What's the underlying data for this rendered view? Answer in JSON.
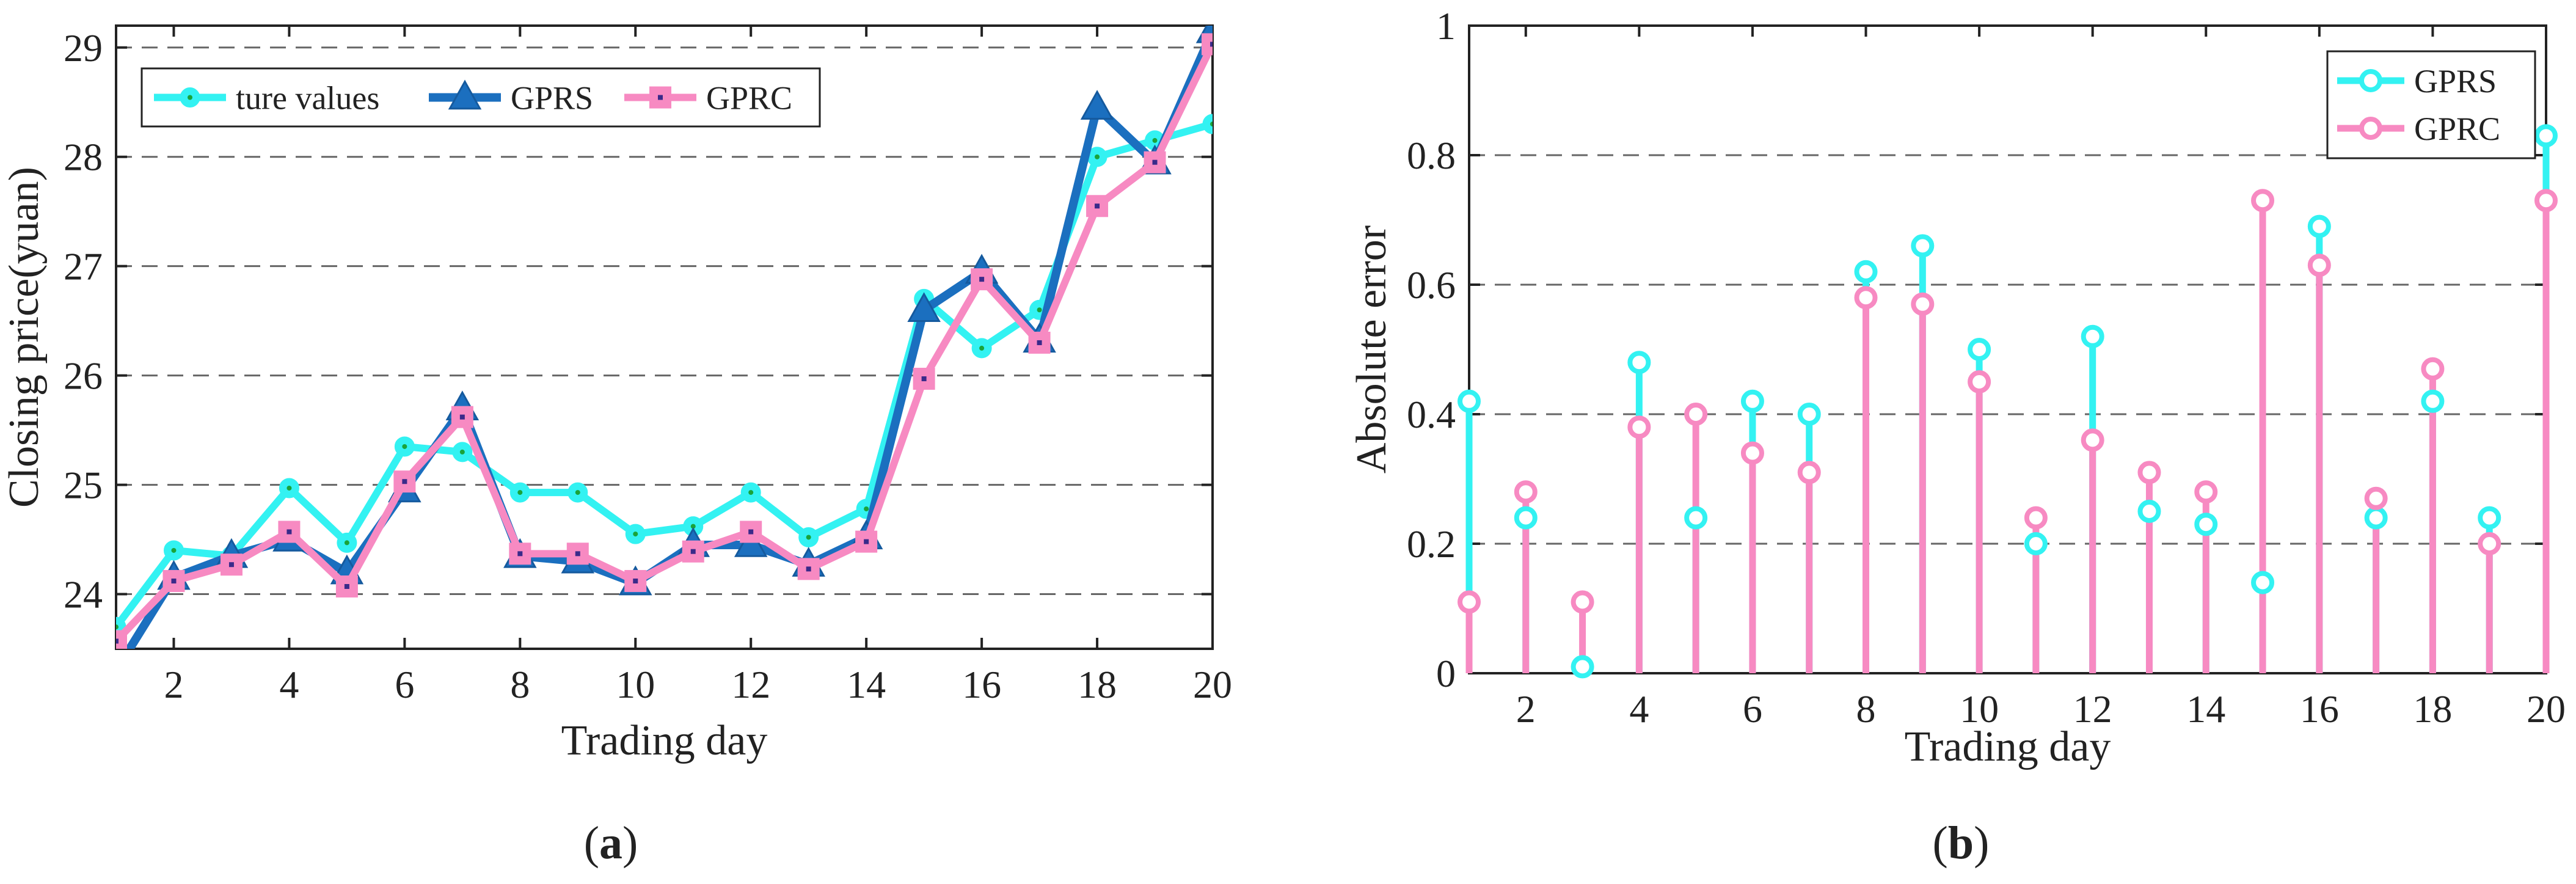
{
  "chart_data": [
    {
      "type": "line",
      "panel_label": "(a)",
      "xlabel": "Trading day",
      "ylabel": "Closing price(yuan)",
      "xlim": [
        1,
        20
      ],
      "ylim": [
        23.5,
        29.2
      ],
      "xticks": [
        2,
        4,
        6,
        8,
        10,
        12,
        14,
        16,
        18,
        20
      ],
      "yticks": [
        24,
        25,
        26,
        27,
        28,
        29
      ],
      "grid": "horizontal-dashed",
      "legend_position": "top-left",
      "x": [
        1,
        2,
        3,
        4,
        5,
        6,
        7,
        8,
        9,
        10,
        11,
        12,
        13,
        14,
        15,
        16,
        17,
        18,
        19,
        20
      ],
      "series": [
        {
          "name": "ture values",
          "color": "#33F2F2",
          "marker": "circle",
          "values": [
            23.7,
            24.4,
            24.35,
            24.97,
            24.47,
            25.35,
            25.3,
            24.93,
            24.93,
            24.55,
            24.62,
            24.93,
            24.52,
            24.78,
            26.7,
            26.25,
            26.6,
            28.0,
            28.15,
            28.3
          ]
        },
        {
          "name": "GPRS",
          "color": "#1B6FBF",
          "marker": "triangle",
          "values": [
            23.3,
            24.15,
            24.35,
            24.5,
            24.2,
            24.95,
            25.7,
            24.35,
            24.3,
            24.1,
            24.45,
            24.45,
            24.27,
            24.52,
            26.6,
            26.95,
            26.32,
            28.45,
            27.95,
            29.15
          ]
        },
        {
          "name": "GPRC",
          "color": "#F78AC2",
          "marker": "square",
          "values": [
            23.57,
            24.12,
            24.27,
            24.57,
            24.07,
            25.03,
            25.62,
            24.37,
            24.37,
            24.12,
            24.39,
            24.57,
            24.23,
            24.48,
            25.97,
            26.88,
            26.3,
            27.55,
            27.95,
            29.03
          ]
        }
      ]
    },
    {
      "type": "stem",
      "panel_label": "(b)",
      "xlabel": "Trading day",
      "ylabel": "Absolute error",
      "xlim": [
        1,
        20
      ],
      "ylim": [
        0,
        1
      ],
      "xticks": [
        2,
        4,
        6,
        8,
        10,
        12,
        14,
        16,
        18,
        20
      ],
      "yticks": [
        0,
        0.2,
        0.4,
        0.6,
        0.8,
        1
      ],
      "grid": "horizontal-dashed",
      "legend_position": "top-right",
      "x": [
        1,
        2,
        3,
        4,
        5,
        6,
        7,
        8,
        9,
        10,
        11,
        12,
        13,
        14,
        15,
        16,
        17,
        18,
        19,
        20
      ],
      "series": [
        {
          "name": "GPRS",
          "color": "#33F2F2",
          "marker": "circle",
          "values": [
            0.42,
            0.24,
            0.01,
            0.48,
            0.24,
            0.42,
            0.4,
            0.62,
            0.66,
            0.5,
            0.2,
            0.52,
            0.25,
            0.23,
            0.14,
            0.69,
            0.24,
            0.42,
            0.24,
            0.83
          ]
        },
        {
          "name": "GPRC",
          "color": "#F78AC2",
          "marker": "circle",
          "values": [
            0.11,
            0.28,
            0.11,
            0.38,
            0.4,
            0.34,
            0.31,
            0.58,
            0.57,
            0.45,
            0.24,
            0.36,
            0.31,
            0.28,
            0.73,
            0.63,
            0.27,
            0.47,
            0.2,
            0.73
          ]
        }
      ]
    }
  ]
}
